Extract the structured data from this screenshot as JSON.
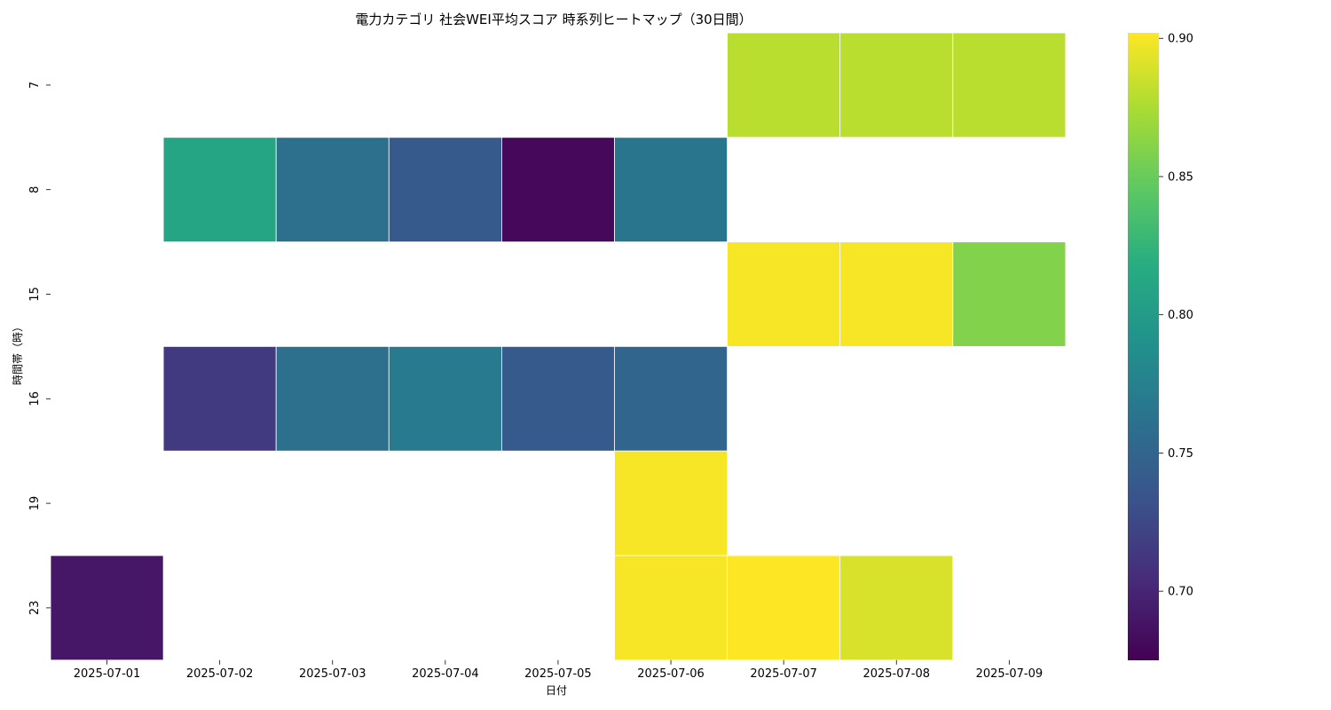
{
  "chart_data": {
    "type": "heatmap",
    "title": "電力カテゴリ 社会WEI平均スコア 時系列ヒートマップ（30日間）",
    "xlabel": "日付",
    "ylabel": "時間帯（時）",
    "x": [
      "2025-07-01",
      "2025-07-02",
      "2025-07-03",
      "2025-07-04",
      "2025-07-05",
      "2025-07-06",
      "2025-07-07",
      "2025-07-08",
      "2025-07-09"
    ],
    "y": [
      "7",
      "8",
      "15",
      "16",
      "19",
      "23"
    ],
    "values": [
      [
        null,
        null,
        null,
        null,
        null,
        null,
        0.88,
        0.88,
        0.88
      ],
      [
        null,
        0.81,
        0.76,
        0.74,
        0.68,
        0.765,
        null,
        null,
        null
      ],
      [
        null,
        null,
        null,
        null,
        null,
        null,
        0.9,
        0.9,
        0.86
      ],
      [
        null,
        0.715,
        0.76,
        0.77,
        0.74,
        0.75,
        null,
        null,
        null
      ],
      [
        null,
        null,
        null,
        null,
        null,
        0.9,
        null,
        null,
        null
      ],
      [
        0.69,
        null,
        null,
        null,
        null,
        0.9,
        0.902,
        0.89,
        null
      ]
    ],
    "colorbar": {
      "colormap": "viridis",
      "range": [
        0.675,
        0.902
      ],
      "ticks": [
        "0.70",
        "0.75",
        "0.80",
        "0.85",
        "0.90"
      ]
    }
  }
}
